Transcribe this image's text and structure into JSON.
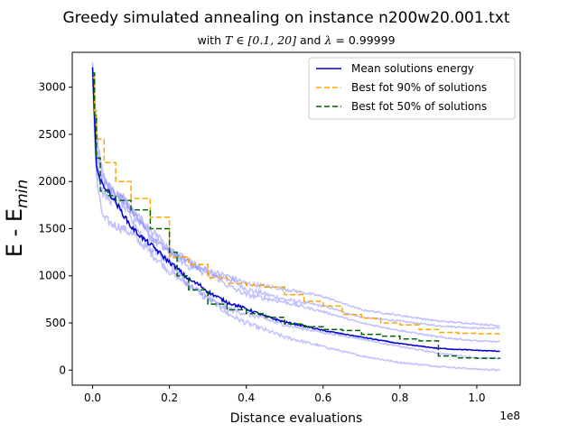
{
  "chart_data": {
    "type": "line",
    "title": "Greedy simulated annealing on instance n200w20.001.txt",
    "subtitle_prefix": "with ",
    "subtitle_math": "T ∈ [0.1, 20]",
    "subtitle_mid": " and ",
    "subtitle_lambda": "λ",
    "subtitle_suffix": " = 0.99999",
    "xlabel": "Distance evaluations",
    "ylabel_main": "E - E",
    "ylabel_sub": "min",
    "x_offset_label": "1e8",
    "x_scale_note": "x values in units of 1e8",
    "xlim": [
      -0.053,
      1.113
    ],
    "ylim": [
      -160,
      3370
    ],
    "xticks": [
      0.0,
      0.2,
      0.4,
      0.6,
      0.8,
      1.0
    ],
    "xtick_labels": [
      "0.0",
      "0.2",
      "0.4",
      "0.6",
      "0.8",
      "1.0"
    ],
    "yticks": [
      0,
      500,
      1000,
      1500,
      2000,
      2500,
      3000
    ],
    "ytick_labels": [
      "0",
      "500",
      "1000",
      "1500",
      "2000",
      "2500",
      "3000"
    ],
    "grid": false,
    "legend_position": "upper right",
    "colors": {
      "mean": "#0000cc",
      "best90": "#ffa500",
      "best50": "#006400",
      "runs": "#8c8cff"
    },
    "series": [
      {
        "name": "Mean solutions energy",
        "style": "solid",
        "x": [
          0.0,
          0.005,
          0.01,
          0.02,
          0.04,
          0.06,
          0.08,
          0.1,
          0.13,
          0.16,
          0.19,
          0.22,
          0.25,
          0.28,
          0.3,
          0.35,
          0.4,
          0.45,
          0.5,
          0.55,
          0.6,
          0.7,
          0.8,
          0.9,
          1.0,
          1.06
        ],
        "y": [
          3200,
          2650,
          2200,
          2000,
          1900,
          1780,
          1650,
          1520,
          1400,
          1300,
          1180,
          1080,
          960,
          900,
          830,
          720,
          650,
          570,
          510,
          470,
          420,
          350,
          280,
          230,
          210,
          200
        ]
      },
      {
        "name": "Best fot 90% of solutions",
        "style": "dashed",
        "x": [
          0.0,
          0.005,
          0.01,
          0.03,
          0.06,
          0.1,
          0.15,
          0.2,
          0.25,
          0.3,
          0.35,
          0.4,
          0.45,
          0.5,
          0.55,
          0.6,
          0.65,
          0.7,
          0.75,
          0.8,
          0.85,
          0.9,
          0.95,
          1.0,
          1.06
        ],
        "y": [
          3100,
          2750,
          2450,
          2200,
          2000,
          1820,
          1620,
          1200,
          1120,
          980,
          920,
          900,
          880,
          800,
          730,
          680,
          590,
          550,
          500,
          480,
          430,
          400,
          390,
          385,
          385
        ]
      },
      {
        "name": "Best fot 50% of solutions",
        "style": "dashed",
        "x": [
          0.0,
          0.005,
          0.01,
          0.02,
          0.04,
          0.06,
          0.1,
          0.15,
          0.2,
          0.22,
          0.25,
          0.3,
          0.35,
          0.4,
          0.45,
          0.5,
          0.55,
          0.6,
          0.65,
          0.7,
          0.75,
          0.8,
          0.85,
          0.9,
          0.95,
          1.0,
          1.06
        ],
        "y": [
          3150,
          2700,
          2250,
          1900,
          1850,
          1800,
          1700,
          1500,
          1250,
          1000,
          850,
          700,
          640,
          600,
          560,
          490,
          460,
          430,
          420,
          380,
          360,
          330,
          310,
          150,
          130,
          125,
          120
        ]
      },
      {
        "style": "faint",
        "x": [
          0.0,
          0.005,
          0.01,
          0.02,
          0.03,
          0.05,
          0.08,
          0.1,
          0.15,
          0.2,
          0.25,
          0.3,
          0.35,
          0.4,
          0.5,
          0.6,
          0.7,
          0.8,
          0.9,
          1.0,
          1.06
        ],
        "y": [
          3250,
          2900,
          2550,
          2200,
          2050,
          1900,
          1800,
          1700,
          1450,
          1250,
          1150,
          1000,
          980,
          860,
          750,
          680,
          560,
          520,
          470,
          445,
          445
        ]
      },
      {
        "style": "faint",
        "x": [
          0.0,
          0.005,
          0.01,
          0.02,
          0.03,
          0.05,
          0.08,
          0.1,
          0.15,
          0.2,
          0.25,
          0.3,
          0.35,
          0.4,
          0.5,
          0.6,
          0.7,
          0.8,
          0.9,
          1.0,
          1.06
        ],
        "y": [
          3200,
          2500,
          2050,
          1750,
          1600,
          1550,
          1500,
          1450,
          1250,
          1050,
          900,
          780,
          600,
          500,
          350,
          250,
          150,
          80,
          40,
          10,
          0
        ]
      },
      {
        "style": "faint",
        "x": [
          0.0,
          0.005,
          0.01,
          0.02,
          0.03,
          0.05,
          0.08,
          0.1,
          0.15,
          0.2,
          0.25,
          0.3,
          0.35,
          0.4,
          0.5,
          0.6,
          0.7,
          0.8,
          0.9,
          1.0,
          1.06
        ],
        "y": [
          3100,
          2700,
          2300,
          2050,
          1950,
          1900,
          1850,
          1700,
          1400,
          1250,
          1100,
          1050,
          1000,
          920,
          860,
          780,
          640,
          580,
          520,
          490,
          470
        ]
      },
      {
        "style": "faint",
        "x": [
          0.0,
          0.005,
          0.01,
          0.02,
          0.03,
          0.05,
          0.08,
          0.1,
          0.15,
          0.2,
          0.25,
          0.3,
          0.35,
          0.4,
          0.5,
          0.6,
          0.7,
          0.8,
          0.9,
          1.0,
          1.06
        ],
        "y": [
          3150,
          2600,
          2150,
          1950,
          1850,
          1800,
          1750,
          1600,
          1300,
          1150,
          900,
          750,
          650,
          600,
          480,
          400,
          330,
          250,
          180,
          130,
          125
        ]
      },
      {
        "style": "faint",
        "x": [
          0.0,
          0.005,
          0.01,
          0.02,
          0.03,
          0.05,
          0.08,
          0.1,
          0.15,
          0.2,
          0.25,
          0.3,
          0.35,
          0.4,
          0.5,
          0.6,
          0.7,
          0.8,
          0.9,
          1.0,
          1.06
        ],
        "y": [
          3200,
          2800,
          2400,
          2150,
          2000,
          1900,
          1820,
          1700,
          1500,
          1300,
          1150,
          1050,
          900,
          800,
          720,
          620,
          500,
          420,
          350,
          310,
          300
        ]
      }
    ]
  }
}
